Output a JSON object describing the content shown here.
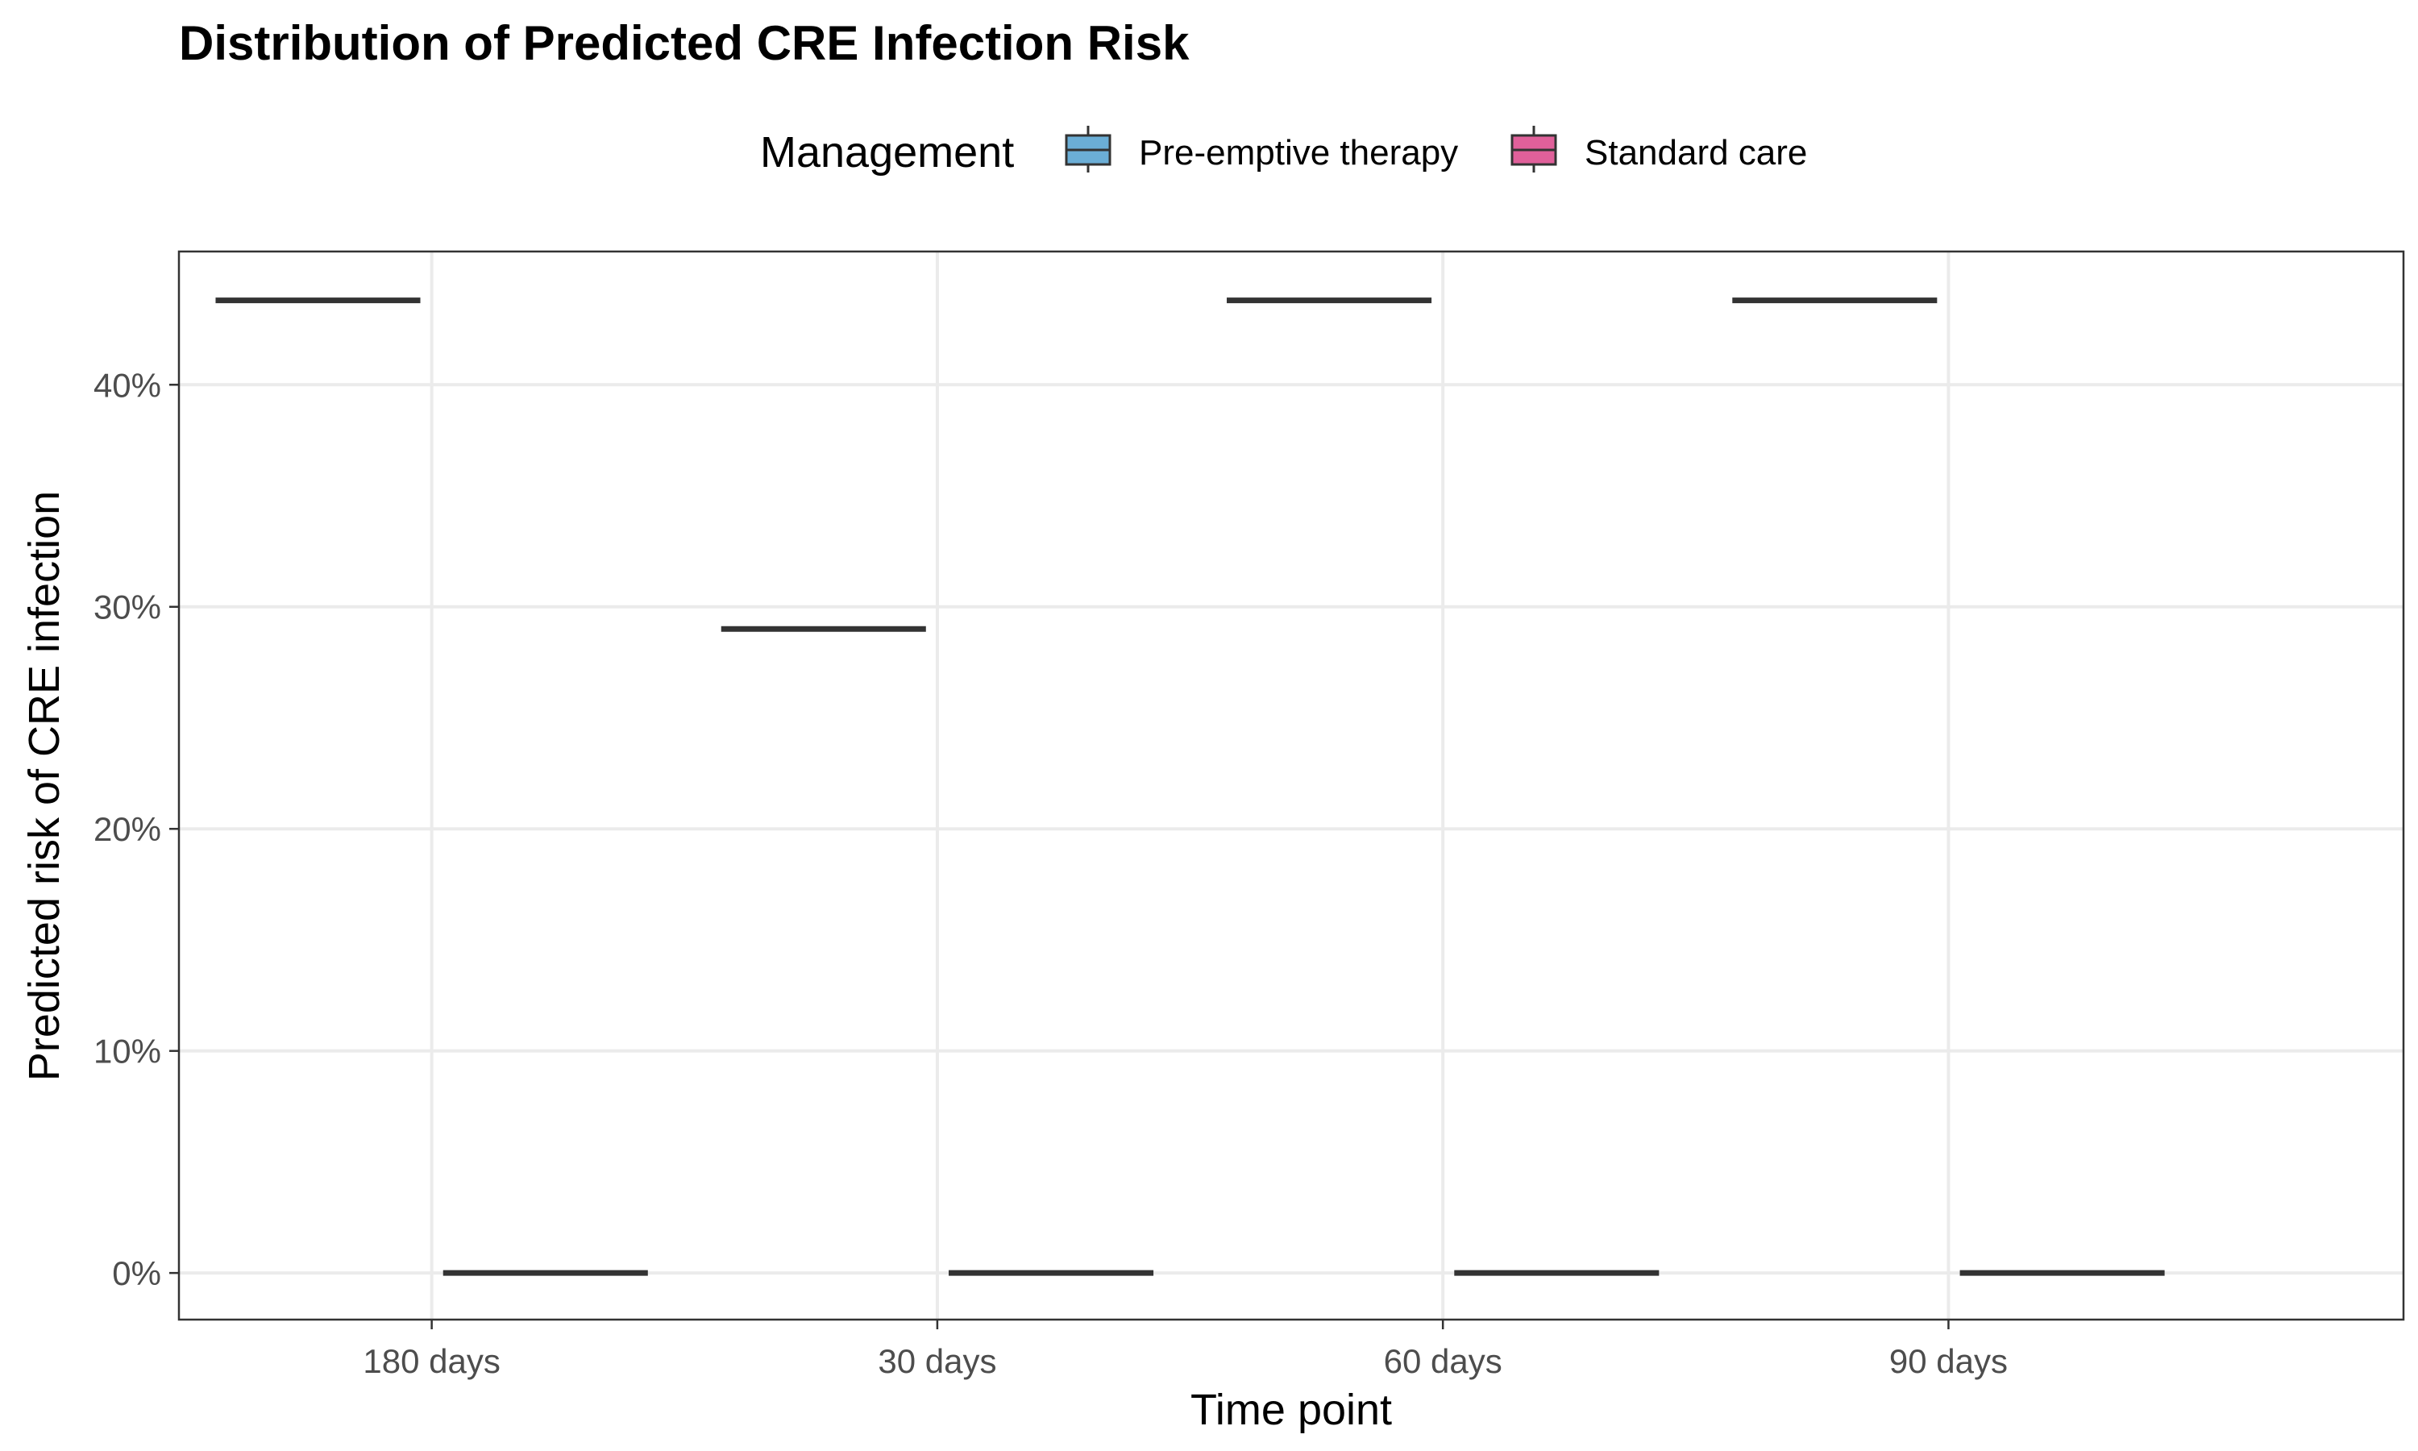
{
  "chart_data": {
    "type": "boxplot",
    "title": "Distribution of Predicted CRE Infection Risk",
    "xlabel": "Time point",
    "ylabel": "Predicted risk of CRE infection",
    "categories": [
      "180 days",
      "30 days",
      "60 days",
      "90 days"
    ],
    "yticks": [
      0,
      10,
      20,
      30,
      40
    ],
    "ytick_labels": [
      "0%",
      "10%",
      "20%",
      "30%",
      "40%"
    ],
    "ylim": [
      -2.1,
      46
    ],
    "legend": {
      "title": "Management",
      "position": "top",
      "entries": [
        "Pre-emptive therapy",
        "Standard care"
      ]
    },
    "series": [
      {
        "name": "Pre-emptive therapy",
        "color": "#6baed6",
        "values": [
          43.8,
          29.0,
          43.8,
          43.8
        ]
      },
      {
        "name": "Standard care",
        "color": "#e0609a",
        "values": [
          0,
          0,
          0,
          0
        ]
      }
    ],
    "grid": true
  }
}
